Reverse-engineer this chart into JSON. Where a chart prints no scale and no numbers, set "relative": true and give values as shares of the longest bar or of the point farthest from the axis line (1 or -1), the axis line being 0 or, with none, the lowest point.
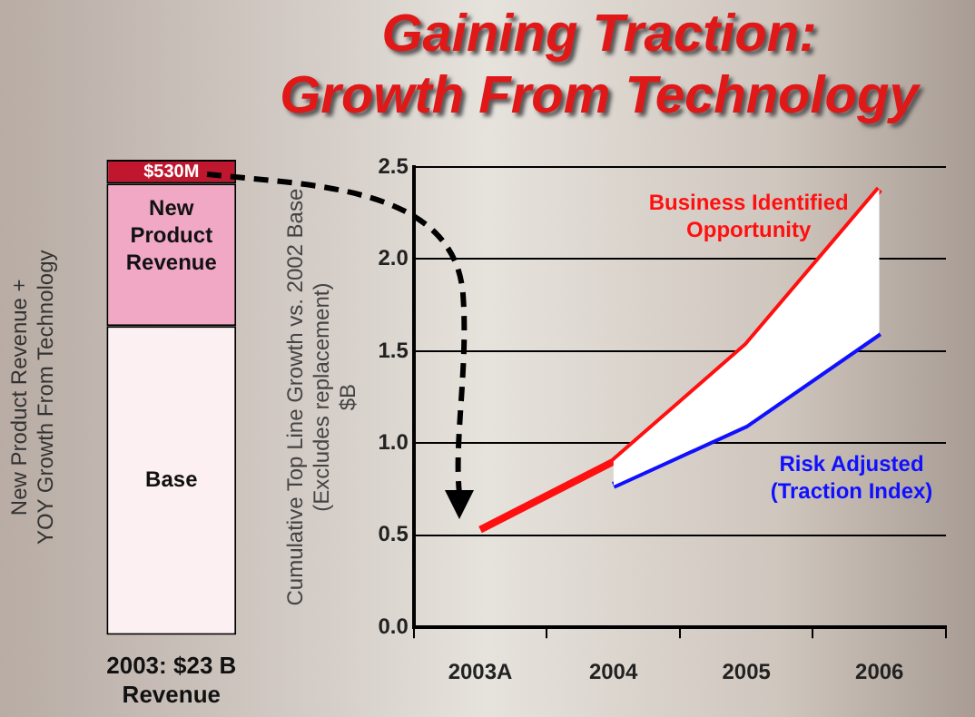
{
  "chart_data": [
    {
      "type": "bar",
      "stacked": true,
      "relative": true,
      "categories": [
        null
      ],
      "xlabel": "2003: $23 B Revenue",
      "ylabel": "New Product Revenue + YOY Growth From Technology",
      "series": [
        {
          "name": "Base",
          "color": "#fdf0f3",
          "values": [
            0.65
          ]
        },
        {
          "name": "New Product Revenue",
          "color": "#f0a8c4",
          "values": [
            0.3
          ]
        },
        {
          "name": "$530M",
          "color": "#c0162e",
          "values": [
            0.05
          ]
        }
      ],
      "legend": false
    },
    {
      "type": "line",
      "title": "Gaining Traction: Growth From Technology",
      "categories": [
        "2003A",
        "2004",
        "2005",
        "2006"
      ],
      "ylabel": "Cumulative Top Line Growth vs. 2002 Base (Excludes replacement) $B",
      "ylim": [
        0,
        2.5
      ],
      "yticks": [
        {
          "value": 0,
          "label": "0.0"
        },
        {
          "value": 0.5,
          "label": "0.5"
        },
        {
          "value": 1,
          "label": "1.0"
        },
        {
          "value": 1.5,
          "label": "1.5"
        },
        {
          "value": 2,
          "label": "2.0"
        },
        {
          "value": 2.5,
          "label": "2.5"
        }
      ],
      "grid": "y",
      "legend": false,
      "marker": "none",
      "series": [
        {
          "name": "Business Identified Opportunity",
          "color": "#ff1010",
          "values": [
            0.53,
            0.9,
            1.53,
            2.38
          ],
          "lower": [
            null,
            0.77,
            1.1,
            1.6
          ],
          "upper": [
            null,
            0.9,
            1.53,
            2.38
          ]
        },
        {
          "name": "Risk Adjusted (Traction Index)",
          "color": "#1010ff",
          "values": [
            null,
            0.77,
            1.1,
            1.6
          ]
        }
      ]
    }
  ]
}
